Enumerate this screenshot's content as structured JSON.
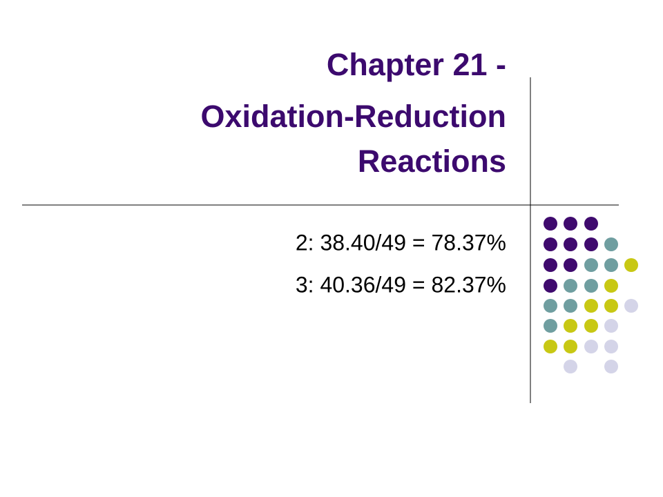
{
  "slide": {
    "title_lines": [
      "Chapter 21 -",
      "Oxidation-Reduction",
      "Reactions"
    ],
    "body_lines": [
      "2: 38.40/49 = 78.37%",
      "3: 40.36/49 = 82.37%"
    ]
  }
}
